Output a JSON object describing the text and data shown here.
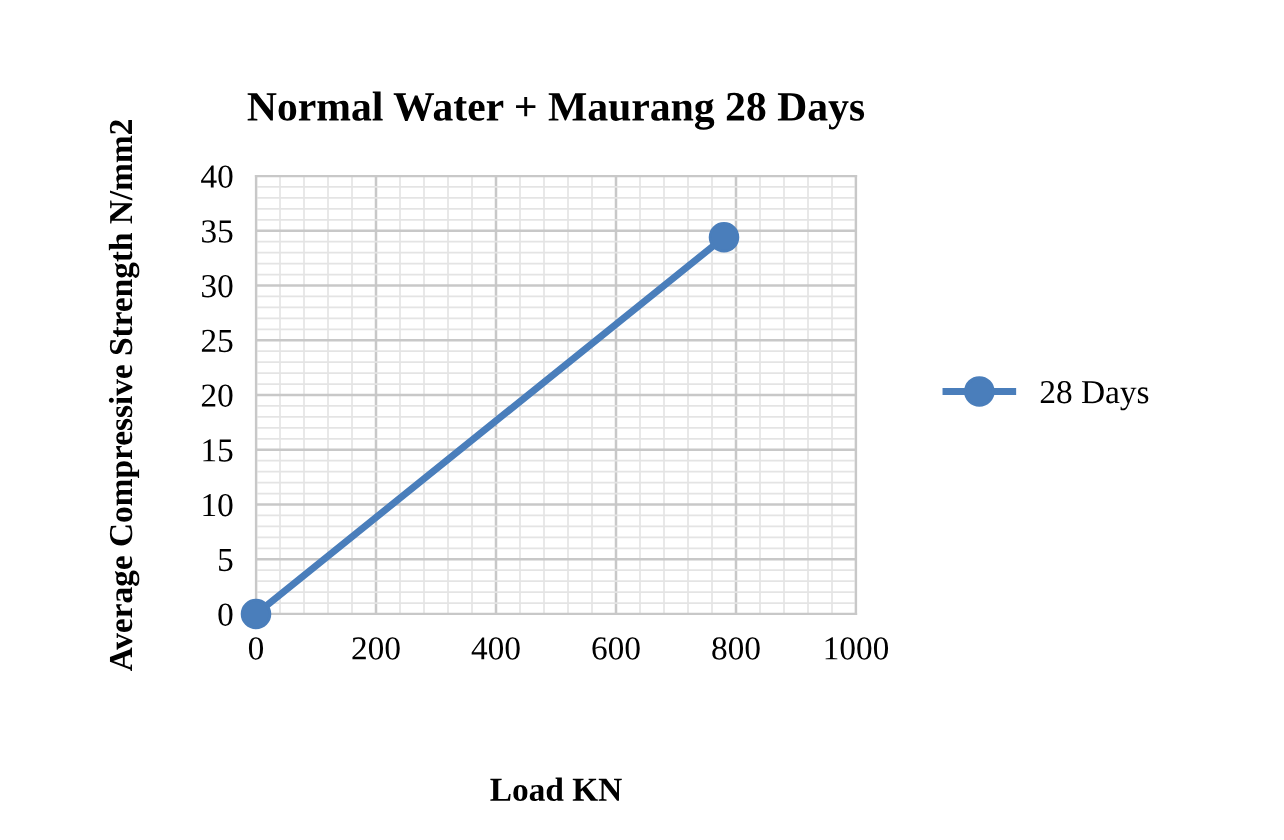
{
  "chart_data": {
    "type": "line",
    "title": "Normal Water + Maurang 28 Days",
    "xlabel": "Load KN",
    "ylabel": "Average Compressive Strength N/mm2",
    "series": [
      {
        "name": "28 Days",
        "color": "#4a7ebb",
        "x": [
          0,
          780
        ],
        "values": [
          0,
          34.4
        ]
      }
    ],
    "xlim": [
      0,
      1000
    ],
    "xticks": [
      0,
      200,
      400,
      600,
      800,
      1000
    ],
    "ylim": [
      0,
      40
    ],
    "yticks": [
      0,
      5,
      10,
      15,
      20,
      25,
      30,
      35,
      40
    ],
    "grid": true,
    "legend": "right",
    "marker": "circle",
    "line_style": "solid"
  }
}
